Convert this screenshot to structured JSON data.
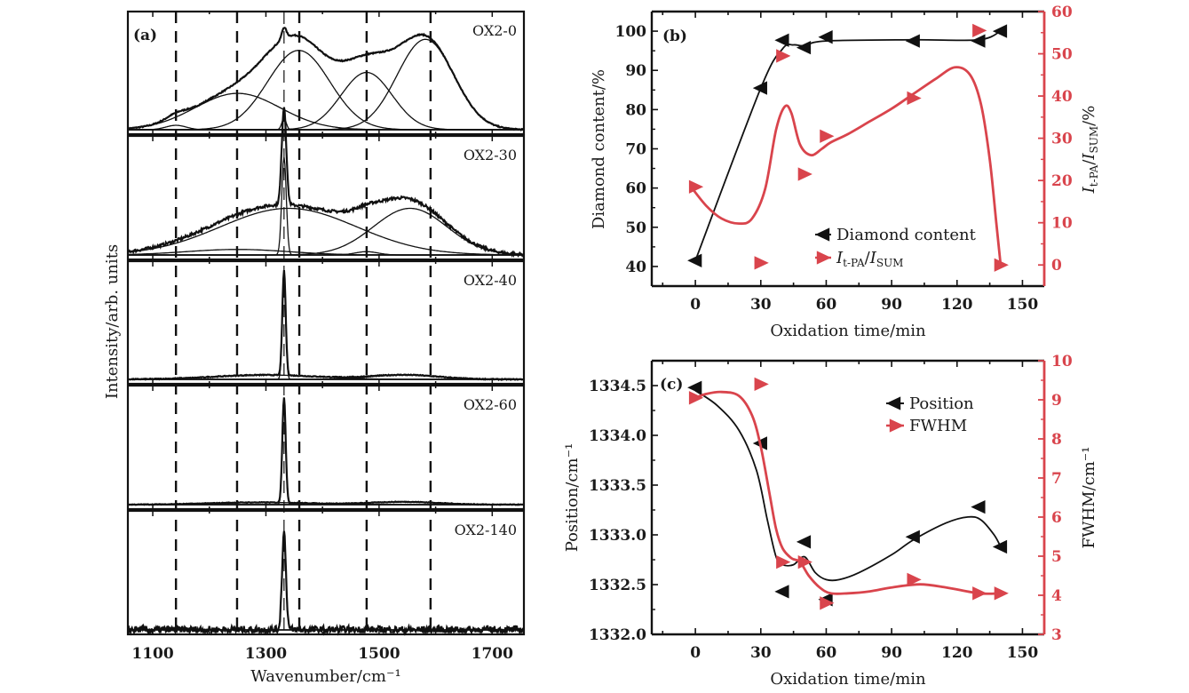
{
  "colors": {
    "black": "#111111",
    "red": "#d9444c"
  },
  "chart_data": [
    {
      "id": "a",
      "type": "line",
      "panel_label": "(a)",
      "title": "",
      "xlabel": "Wavenumber/cm⁻¹",
      "ylabel": "Intensity/arb. units",
      "xlim": [
        1056,
        1756
      ],
      "xticks": [
        1100,
        1300,
        1500,
        1700
      ],
      "xticks_minor": [
        1200,
        1400,
        1600
      ],
      "reference_lines_dashed": [
        1141,
        1249,
        1359,
        1478,
        1591
      ],
      "reference_line_solid": 1332,
      "stacked_spectra": [
        {
          "name": "OX2-0",
          "peaks": [
            {
              "center": 1141,
              "width": 18,
              "height": 0.04
            },
            {
              "center": 1250,
              "width": 75,
              "height": 0.33
            },
            {
              "center": 1332,
              "width": 4,
              "height": 0.1
            },
            {
              "center": 1358,
              "width": 55,
              "height": 0.72
            },
            {
              "center": 1478,
              "width": 45,
              "height": 0.52
            },
            {
              "center": 1582,
              "width": 50,
              "height": 0.82
            }
          ],
          "noise": 0.005
        },
        {
          "name": "OX2-30",
          "peaks": [
            {
              "center": 1250,
              "width": 90,
              "height": 0.05
            },
            {
              "center": 1332,
              "width": 4,
              "height": 0.88
            },
            {
              "center": 1340,
              "width": 120,
              "height": 0.42
            },
            {
              "center": 1478,
              "width": 20,
              "height": 0.03
            },
            {
              "center": 1555,
              "width": 65,
              "height": 0.42
            }
          ],
          "noise": 0.012
        },
        {
          "name": "OX2-40",
          "peaks": [
            {
              "center": 1332,
              "width": 3,
              "height": 0.95
            },
            {
              "center": 1300,
              "width": 90,
              "height": 0.04
            },
            {
              "center": 1545,
              "width": 60,
              "height": 0.04
            }
          ],
          "noise": 0.004
        },
        {
          "name": "OX2-60",
          "peaks": [
            {
              "center": 1332,
              "width": 3,
              "height": 0.95
            },
            {
              "center": 1290,
              "width": 90,
              "height": 0.02
            },
            {
              "center": 1545,
              "width": 60,
              "height": 0.025
            }
          ],
          "noise": 0.003
        },
        {
          "name": "OX2-140",
          "peaks": [
            {
              "center": 1332,
              "width": 3.5,
              "height": 0.88
            }
          ],
          "noise": 0.035
        }
      ]
    },
    {
      "id": "b",
      "type": "line",
      "panel_label": "(b)",
      "xlabel": "Oxidation time/min",
      "ylabel_left": "Diamond content/%",
      "ylabel_right": "I_t-PA/I_SUM/%",
      "xlim": [
        -20,
        160
      ],
      "xticks": [
        0,
        30,
        60,
        90,
        120,
        150
      ],
      "ylim_left": [
        35,
        105
      ],
      "yticks_left": [
        40,
        50,
        60,
        70,
        80,
        90,
        100
      ],
      "ylim_right": [
        -5,
        60
      ],
      "yticks_right": [
        0,
        10,
        20,
        30,
        40,
        50,
        60
      ],
      "series": [
        {
          "name": "Diamond content",
          "axis": "left",
          "color": "#111111",
          "marker": "triangle-left",
          "x": [
            0,
            30,
            40,
            50,
            60,
            100,
            130,
            140
          ],
          "y": [
            41.5,
            85.5,
            97.7,
            95.8,
            98.5,
            97.5,
            97.5,
            100
          ],
          "curve_x": [
            0,
            30,
            40,
            45,
            50,
            60,
            100,
            130,
            140
          ],
          "curve_y": [
            41.5,
            85.5,
            95.5,
            96.5,
            96.3,
            97.5,
            97.8,
            97.8,
            100
          ]
        },
        {
          "name": "I_t-PA/I_SUM",
          "axis": "right",
          "color": "#d9444c",
          "marker": "triangle-right",
          "x": [
            0,
            30,
            40,
            50,
            60,
            100,
            130,
            140
          ],
          "y": [
            18.5,
            0.5,
            49.5,
            21.5,
            30.5,
            39.5,
            55.5,
            0
          ],
          "curve_x": [
            -2,
            5,
            12,
            20,
            26,
            32,
            37,
            41,
            44,
            48,
            53,
            58,
            62,
            70,
            80,
            90,
            100,
            110,
            119,
            126,
            131,
            135,
            138,
            140
          ],
          "curve_y": [
            18.5,
            14,
            11,
            9.8,
            11,
            18,
            32,
            37.5,
            36,
            28.5,
            26,
            27.5,
            29,
            31,
            34,
            37,
            40.5,
            44,
            46.8,
            45,
            38,
            25,
            10,
            0
          ]
        }
      ],
      "legend": {
        "position": "lower-right",
        "entries": [
          "Diamond content",
          "I_t-PA/I_SUM"
        ]
      }
    },
    {
      "id": "c",
      "type": "line",
      "panel_label": "(c)",
      "xlabel": "Oxidation time/min",
      "ylabel_left": "Position/cm⁻¹",
      "ylabel_right": "FWHM/cm⁻¹",
      "xlim": [
        -20,
        160
      ],
      "xticks": [
        0,
        30,
        60,
        90,
        120,
        150
      ],
      "ylim_left": [
        1332.0,
        1334.75
      ],
      "yticks_left": [
        "1332.0",
        "1332.5",
        "1333.0",
        "1333.5",
        "1334.0",
        "1334.5"
      ],
      "ylim_right": [
        3,
        10
      ],
      "yticks_right": [
        3,
        4,
        5,
        6,
        7,
        8,
        9,
        10
      ],
      "series": [
        {
          "name": "Position",
          "axis": "left",
          "color": "#111111",
          "marker": "triangle-left",
          "x": [
            0,
            30,
            40,
            50,
            60,
            100,
            130,
            140
          ],
          "y": [
            1334.48,
            1333.92,
            1332.43,
            1332.93,
            1332.35,
            1332.98,
            1333.28,
            1332.88
          ],
          "curve_x": [
            0,
            10,
            20,
            28,
            33,
            37,
            40,
            45,
            50,
            55,
            60,
            66,
            75,
            90,
            100,
            115,
            125,
            131,
            137,
            140
          ],
          "curve_y": [
            1334.45,
            1334.3,
            1334.05,
            1333.65,
            1333.15,
            1332.78,
            1332.7,
            1332.7,
            1332.78,
            1332.62,
            1332.55,
            1332.55,
            1332.62,
            1332.8,
            1332.95,
            1333.12,
            1333.18,
            1333.15,
            1333.0,
            1332.88
          ]
        },
        {
          "name": "FWHM",
          "axis": "right",
          "color": "#d9444c",
          "marker": "triangle-right",
          "x": [
            0,
            30,
            40,
            50,
            60,
            100,
            130,
            140
          ],
          "y": [
            9.05,
            9.4,
            4.85,
            4.85,
            3.8,
            4.4,
            4.05,
            4.05
          ],
          "curve_x": [
            0,
            5,
            12,
            20,
            26,
            30,
            34,
            37,
            40,
            44,
            48,
            52,
            57,
            62,
            70,
            80,
            90,
            103,
            115,
            130,
            140
          ],
          "curve_y": [
            9.05,
            9.15,
            9.2,
            9.1,
            8.6,
            7.8,
            6.6,
            5.7,
            5.2,
            4.95,
            4.85,
            4.5,
            4.2,
            4.05,
            4.05,
            4.1,
            4.2,
            4.28,
            4.2,
            4.05,
            4.05
          ]
        }
      ],
      "legend": {
        "position": "upper-right",
        "entries": [
          "Position",
          "FWHM"
        ]
      }
    }
  ]
}
